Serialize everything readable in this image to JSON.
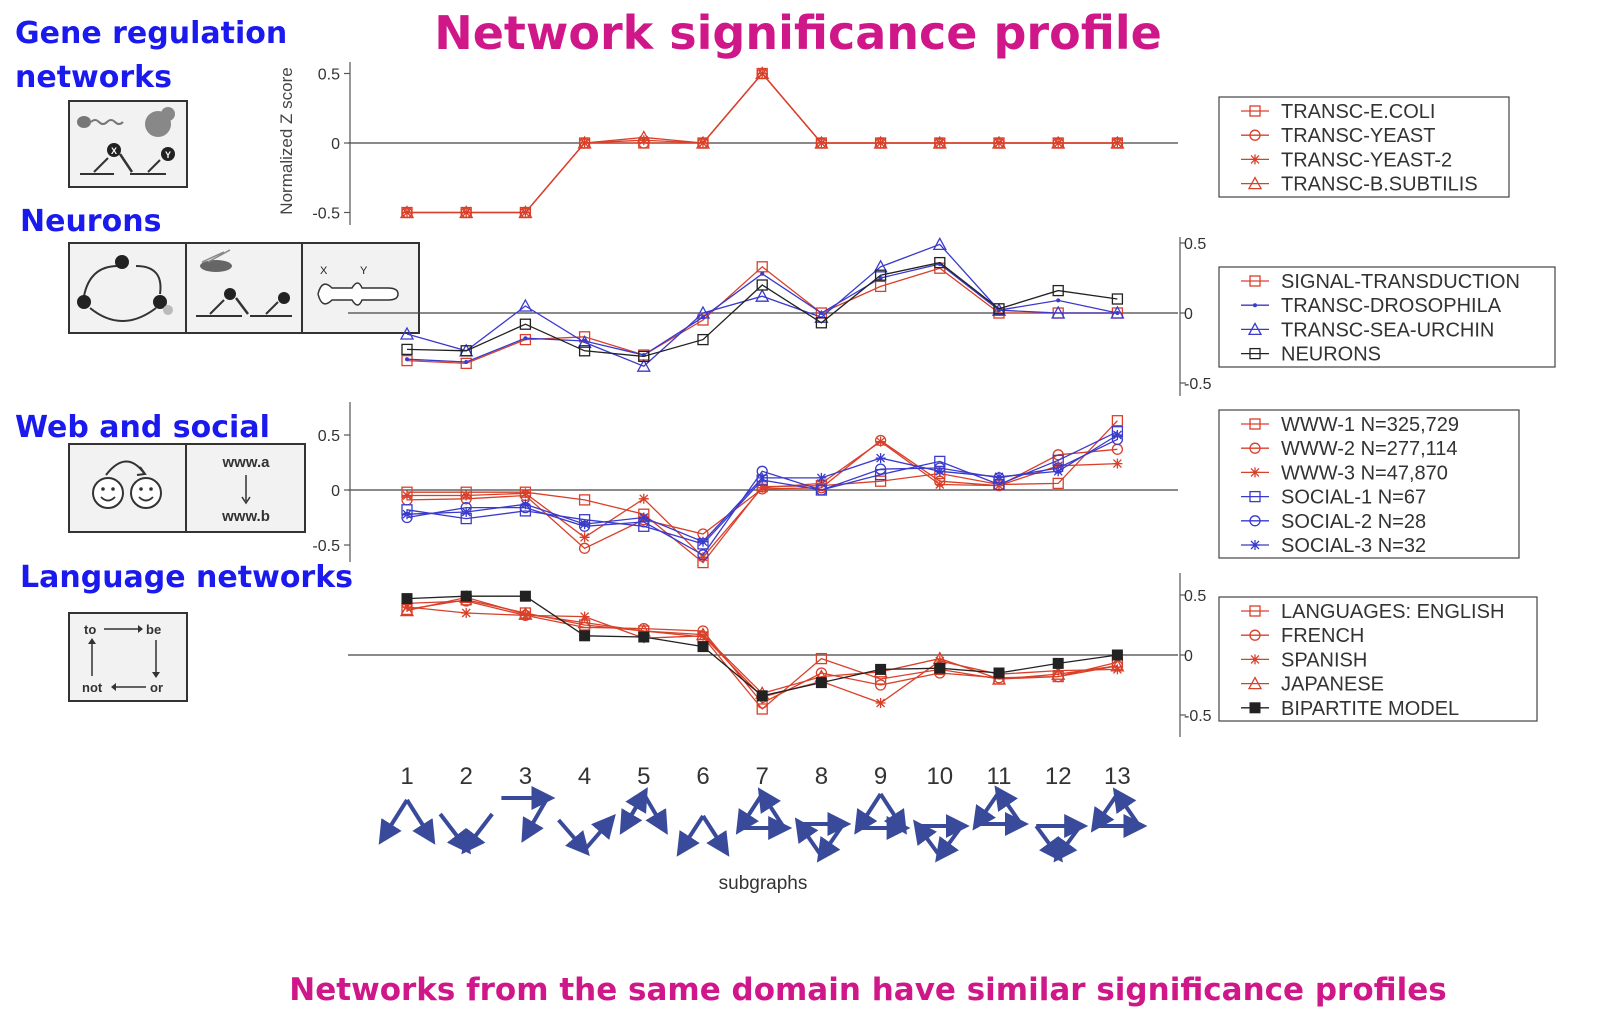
{
  "title": "Network significance profile",
  "footer": "Networks from the same domain have similar significance profiles",
  "sections": {
    "gene": "Gene regulation networks",
    "gene_line1": "Gene regulation",
    "gene_line2": "networks",
    "neurons": "Neurons",
    "web": "Web and social",
    "language": "Language networks"
  },
  "icons": {
    "node_x": "X",
    "node_y": "Y",
    "www_a": "www.a",
    "www_b": "www.b",
    "word_to": "to",
    "word_be": "be",
    "word_not": "not",
    "word_or": "or"
  },
  "colors": {
    "title": "#d0178a",
    "labels": "#1a1aee",
    "red": "#d9402a",
    "blue": "#3a3acc",
    "black": "#222222"
  },
  "chart_data": [
    {
      "type": "line",
      "ylabel": "Normalized Z score",
      "ylim": [
        -0.6,
        0.6
      ],
      "yticks": [
        "0.5",
        "0",
        "-0.5"
      ],
      "yaxis_side": "left",
      "categories": [
        "1",
        "2",
        "3",
        "4",
        "5",
        "6",
        "7",
        "8",
        "9",
        "10",
        "11",
        "12",
        "13"
      ],
      "series": [
        {
          "name": "TRANSC-E.COLI",
          "marker": "square",
          "color": "#d9402a",
          "values": [
            -0.5,
            -0.5,
            -0.5,
            0,
            0,
            0,
            0.5,
            0,
            0,
            0,
            0,
            0,
            0
          ]
        },
        {
          "name": "TRANSC-YEAST",
          "marker": "circle",
          "color": "#d9402a",
          "values": [
            -0.5,
            -0.5,
            -0.5,
            0,
            0,
            0,
            0.5,
            0,
            0,
            0,
            0,
            0,
            0
          ]
        },
        {
          "name": "TRANSC-YEAST-2",
          "marker": "star",
          "color": "#d9402a",
          "values": [
            -0.5,
            -0.5,
            -0.5,
            0,
            0.02,
            0,
            0.5,
            0,
            0,
            0,
            0,
            0,
            0
          ]
        },
        {
          "name": "TRANSC-B.SUBTILIS",
          "marker": "triangle",
          "color": "#d9402a",
          "values": [
            -0.5,
            -0.5,
            -0.5,
            0,
            0.04,
            0,
            0.5,
            0,
            0,
            0,
            0,
            0,
            0
          ]
        }
      ]
    },
    {
      "type": "line",
      "ylim": [
        -0.6,
        0.6
      ],
      "yticks": [
        "0.5",
        "0",
        "-0.5"
      ],
      "yaxis_side": "right",
      "categories": [
        "1",
        "2",
        "3",
        "4",
        "5",
        "6",
        "7",
        "8",
        "9",
        "10",
        "11",
        "12",
        "13"
      ],
      "series": [
        {
          "name": "SIGNAL-TRANSDUCTION",
          "marker": "square",
          "color": "#d9402a",
          "values": [
            -0.34,
            -0.36,
            -0.19,
            -0.17,
            -0.3,
            -0.05,
            0.33,
            0,
            0.19,
            0.32,
            0,
            0,
            0
          ]
        },
        {
          "name": "TRANSC-DROSOPHILA",
          "marker": "dot",
          "color": "#3a3acc",
          "values": [
            -0.33,
            -0.35,
            -0.18,
            -0.2,
            -0.3,
            -0.03,
            0.28,
            0,
            0.25,
            0.35,
            0.02,
            0.09,
            0
          ]
        },
        {
          "name": "TRANSC-SEA-URCHIN",
          "marker": "triangle",
          "color": "#3a3acc",
          "values": [
            -0.15,
            -0.27,
            0.05,
            -0.21,
            -0.38,
            0,
            0.12,
            -0.03,
            0.33,
            0.49,
            0.02,
            0,
            0
          ]
        },
        {
          "name": "NEURONS",
          "marker": "square",
          "color": "#222222",
          "values": [
            -0.26,
            -0.27,
            -0.08,
            -0.27,
            -0.31,
            -0.19,
            0.2,
            -0.07,
            0.27,
            0.36,
            0.03,
            0.16,
            0.1
          ]
        }
      ]
    },
    {
      "type": "line",
      "ylim": [
        -0.65,
        0.65
      ],
      "yticks": [
        "0.5",
        "0",
        "-0.5"
      ],
      "yaxis_side": "left",
      "categories": [
        "1",
        "2",
        "3",
        "4",
        "5",
        "6",
        "7",
        "8",
        "9",
        "10",
        "11",
        "12",
        "13"
      ],
      "series": [
        {
          "name": "WWW-1 N=325,729",
          "marker": "square",
          "color": "#d9402a",
          "values": [
            -0.02,
            -0.02,
            -0.02,
            -0.09,
            -0.22,
            -0.66,
            0.03,
            0.04,
            0.08,
            0.15,
            0.05,
            0.06,
            0.63
          ]
        },
        {
          "name": "WWW-2 N=277,114",
          "marker": "circle",
          "color": "#d9402a",
          "values": [
            -0.09,
            -0.08,
            -0.05,
            -0.53,
            -0.27,
            -0.4,
            0.01,
            0.02,
            0.45,
            0.08,
            0.04,
            0.32,
            0.37
          ]
        },
        {
          "name": "WWW-3 N=47,870",
          "marker": "star",
          "color": "#d9402a",
          "values": [
            -0.05,
            -0.05,
            -0.03,
            -0.43,
            -0.08,
            -0.61,
            0.02,
            0.06,
            0.44,
            0.05,
            0.04,
            0.22,
            0.24
          ]
        },
        {
          "name": "SOCIAL-1 N=67",
          "marker": "square",
          "color": "#3a3acc",
          "values": [
            -0.18,
            -0.26,
            -0.19,
            -0.27,
            -0.33,
            -0.49,
            0.09,
            0,
            0.14,
            0.26,
            0.05,
            0.27,
            0.53
          ]
        },
        {
          "name": "SOCIAL-2 N=28",
          "marker": "circle",
          "color": "#3a3acc",
          "values": [
            -0.25,
            -0.16,
            -0.16,
            -0.33,
            -0.29,
            -0.59,
            0.17,
            0,
            0.19,
            0.2,
            0.11,
            0.2,
            0.46
          ]
        },
        {
          "name": "SOCIAL-3 N=32",
          "marker": "star",
          "color": "#3a3acc",
          "values": [
            -0.22,
            -0.2,
            -0.13,
            -0.31,
            -0.25,
            -0.47,
            0.11,
            0.11,
            0.29,
            0.17,
            0.12,
            0.17,
            0.5
          ]
        }
      ]
    },
    {
      "type": "line",
      "ylim": [
        -0.65,
        0.65
      ],
      "yticks": [
        "0.5",
        "0",
        "-0.5"
      ],
      "yaxis_side": "right",
      "xlabel": "subgraphs",
      "categories": [
        "1",
        "2",
        "3",
        "4",
        "5",
        "6",
        "7",
        "8",
        "9",
        "10",
        "11",
        "12",
        "13"
      ],
      "series": [
        {
          "name": "LANGUAGES: ENGLISH",
          "marker": "square",
          "color": "#d9402a",
          "values": [
            0.38,
            0.46,
            0.35,
            0.25,
            0.2,
            0.15,
            -0.45,
            -0.03,
            -0.2,
            -0.12,
            -0.2,
            -0.18,
            -0.06
          ]
        },
        {
          "name": "FRENCH",
          "marker": "circle",
          "color": "#d9402a",
          "values": [
            0.43,
            0.45,
            0.33,
            0.23,
            0.22,
            0.2,
            -0.4,
            -0.15,
            -0.25,
            -0.15,
            -0.19,
            -0.18,
            -0.09
          ]
        },
        {
          "name": "SPANISH",
          "marker": "star",
          "color": "#d9402a",
          "values": [
            0.4,
            0.35,
            0.33,
            0.32,
            0.14,
            0.16,
            -0.35,
            -0.22,
            -0.4,
            -0.05,
            -0.16,
            -0.13,
            -0.12
          ]
        },
        {
          "name": "JAPANESE",
          "marker": "triangle",
          "color": "#d9402a",
          "values": [
            0.37,
            0.48,
            0.34,
            0.27,
            0.2,
            0.17,
            -0.32,
            -0.18,
            -0.14,
            -0.03,
            -0.2,
            -0.16,
            -0.09
          ]
        },
        {
          "name": "BIPARTITE MODEL",
          "marker": "filled-square",
          "color": "#222222",
          "values": [
            0.47,
            0.49,
            0.49,
            0.16,
            0.15,
            0.07,
            -0.34,
            -0.23,
            -0.12,
            -0.11,
            -0.15,
            -0.07,
            0
          ]
        }
      ]
    }
  ]
}
